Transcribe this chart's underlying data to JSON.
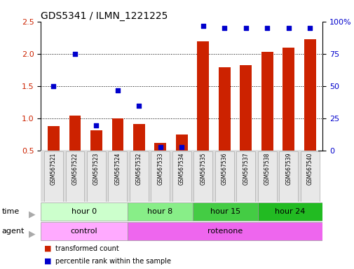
{
  "title": "GDS5341 / ILMN_1221225",
  "samples": [
    "GSM567521",
    "GSM567522",
    "GSM567523",
    "GSM567524",
    "GSM567532",
    "GSM567533",
    "GSM567534",
    "GSM567535",
    "GSM567536",
    "GSM567537",
    "GSM567538",
    "GSM567539",
    "GSM567540"
  ],
  "transformed_count": [
    0.88,
    1.05,
    0.82,
    1.0,
    0.92,
    0.62,
    0.75,
    2.2,
    1.8,
    1.83,
    2.03,
    2.1,
    2.23
  ],
  "percentile_rank": [
    50,
    75,
    20,
    47,
    35,
    3,
    3,
    97,
    95,
    95,
    95,
    95,
    95
  ],
  "ylim_left": [
    0.5,
    2.5
  ],
  "ylim_right": [
    0,
    100
  ],
  "yticks_left": [
    0.5,
    1.0,
    1.5,
    2.0,
    2.5
  ],
  "yticks_right": [
    0,
    25,
    50,
    75,
    100
  ],
  "ytick_labels_right": [
    "0",
    "25",
    "50",
    "75",
    "100%"
  ],
  "bar_color": "#cc2200",
  "dot_color": "#0000cc",
  "bar_width": 0.55,
  "time_groups": [
    {
      "label": "hour 0",
      "start": 0,
      "end": 4,
      "color": "#ccffcc"
    },
    {
      "label": "hour 8",
      "start": 4,
      "end": 7,
      "color": "#88ee88"
    },
    {
      "label": "hour 15",
      "start": 7,
      "end": 10,
      "color": "#44cc44"
    },
    {
      "label": "hour 24",
      "start": 10,
      "end": 13,
      "color": "#22bb22"
    }
  ],
  "agent_groups": [
    {
      "label": "control",
      "start": 0,
      "end": 4,
      "color": "#ffaaff"
    },
    {
      "label": "rotenone",
      "start": 4,
      "end": 13,
      "color": "#ee66ee"
    }
  ],
  "legend_red": "transformed count",
  "legend_blue": "percentile rank within the sample",
  "background_color": "#ffffff",
  "title_fontsize": 10,
  "tick_fontsize": 8,
  "label_fontsize": 8,
  "sample_label_fontsize": 5.5,
  "row_label_fontsize": 8,
  "row_label_color": "#888888"
}
